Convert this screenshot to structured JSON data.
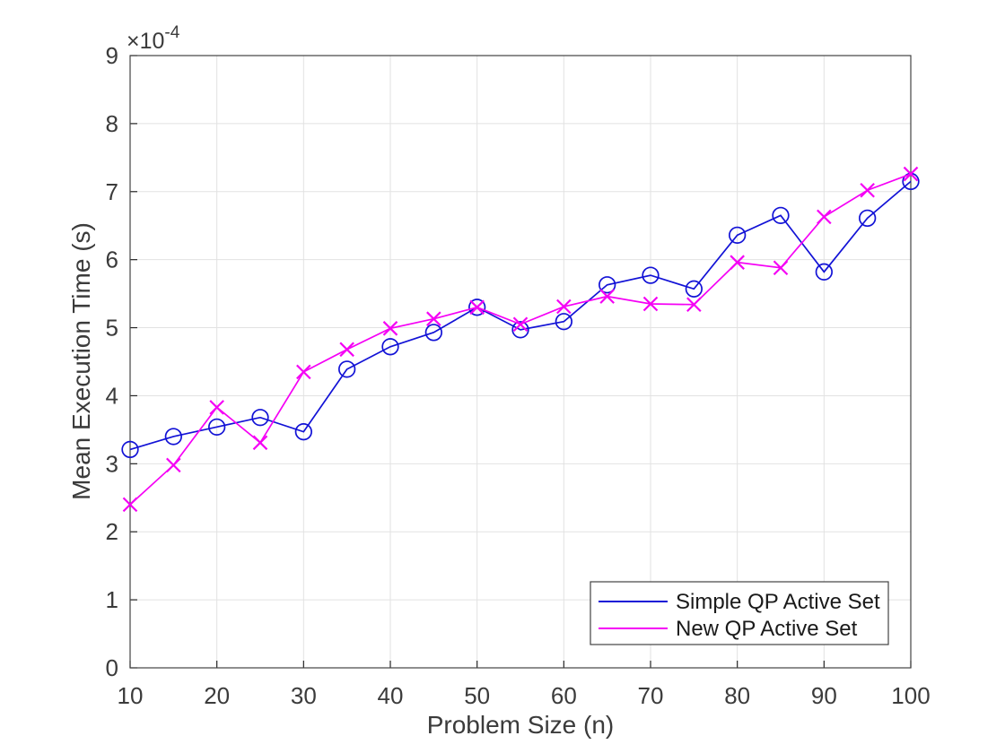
{
  "figure": {
    "background": "#ffffff",
    "axes_color": "#424242",
    "grid_color": "#e2e2e2",
    "exponent": {
      "base": "×10",
      "power": "-4"
    }
  },
  "chart_data": {
    "type": "line",
    "title": "",
    "xlabel": "Problem Size (n)",
    "ylabel": "Mean Execution Time (s)",
    "y_unit_multiplier": "1e-4 seconds",
    "grid": true,
    "legend_position": "inside-bottom-right",
    "xlim": [
      10,
      100
    ],
    "ylim": [
      0,
      9
    ],
    "xticks": [
      10,
      20,
      30,
      40,
      50,
      60,
      70,
      80,
      90,
      100
    ],
    "yticks": [
      0,
      1,
      2,
      3,
      4,
      5,
      6,
      7,
      8,
      9
    ],
    "x": [
      10,
      15,
      20,
      25,
      30,
      35,
      40,
      45,
      50,
      55,
      60,
      65,
      70,
      75,
      80,
      85,
      90,
      95,
      100
    ],
    "series": [
      {
        "name": "Simple QP Active Set",
        "color": "#1212d6",
        "marker": "circle",
        "values": [
          3.21,
          3.4,
          3.54,
          3.68,
          3.47,
          4.39,
          4.72,
          4.93,
          5.3,
          4.97,
          5.09,
          5.63,
          5.77,
          5.57,
          6.36,
          6.65,
          5.82,
          6.61,
          7.15
        ]
      },
      {
        "name": "New QP Active Set",
        "color": "#f500f5",
        "marker": "x",
        "values": [
          2.4,
          2.98,
          3.83,
          3.31,
          4.35,
          4.68,
          4.99,
          5.13,
          5.3,
          5.05,
          5.31,
          5.46,
          5.35,
          5.34,
          5.96,
          5.88,
          6.63,
          7.02,
          7.26
        ]
      }
    ]
  }
}
